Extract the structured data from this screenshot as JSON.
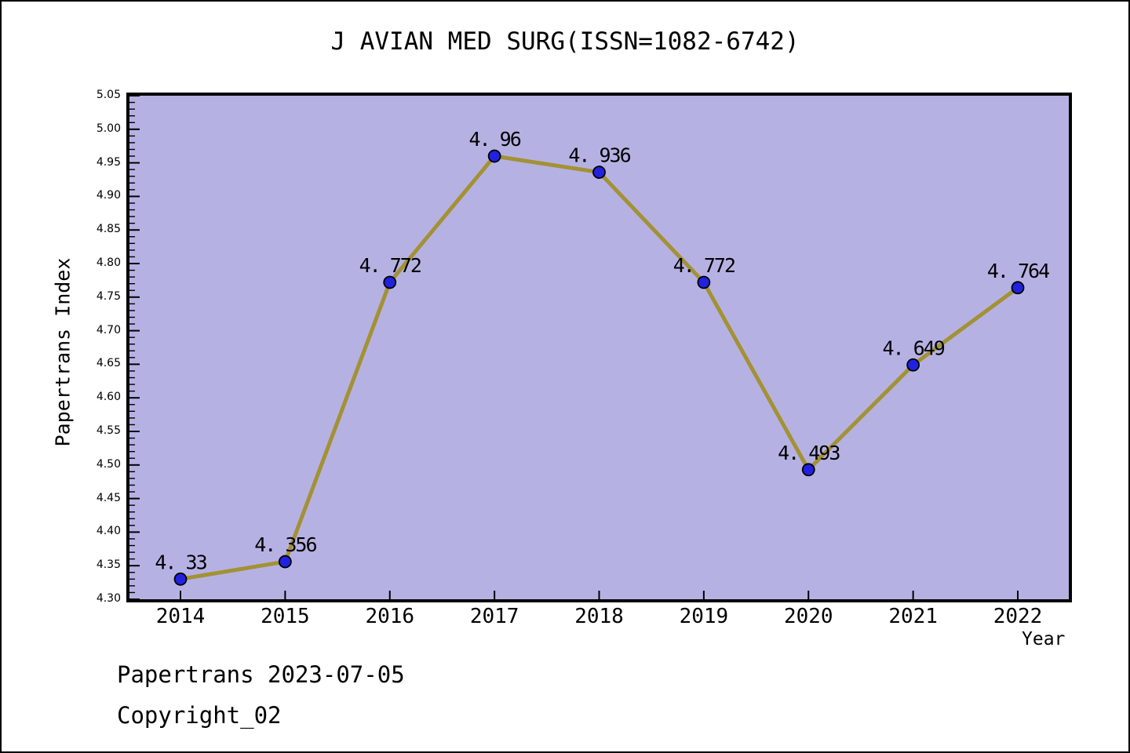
{
  "footer": {
    "line1": "Papertrans 2023-07-05",
    "line2": "Copyright_02"
  },
  "chart_data": {
    "type": "line",
    "title": "J AVIAN MED SURG(ISSN=1082-6742)",
    "xlabel": "Year",
    "ylabel": "Papertrans Index",
    "x": [
      2014,
      2015,
      2016,
      2017,
      2018,
      2019,
      2020,
      2021,
      2022
    ],
    "x_tick_labels": [
      "2014",
      "2015",
      "2016",
      "2017",
      "2018",
      "2019",
      "2020",
      "2021",
      "2022"
    ],
    "series": [
      {
        "name": "Papertrans Index",
        "values": [
          4.33,
          4.356,
          4.772,
          4.96,
          4.936,
          4.772,
          4.493,
          4.649,
          4.764
        ],
        "point_labels": [
          "4. 33",
          "4. 356",
          "4. 772",
          "4. 96",
          "4. 936",
          "4. 772",
          "4. 493",
          "4. 649",
          "4. 764"
        ]
      }
    ],
    "ylim": [
      4.3,
      5.05
    ],
    "ytick_step": 0.05,
    "y_minor_tick_step": 0.01,
    "y_tick_labels": [
      "4.30",
      "4.35",
      "4.40",
      "4.45",
      "4.50",
      "4.55",
      "4.60",
      "4.65",
      "4.70",
      "4.75",
      "4.80",
      "4.85",
      "4.90",
      "4.95",
      "5.00",
      "5.05"
    ],
    "grid": false,
    "legend": "none",
    "colors": {
      "figure_bg": "#ffffff",
      "plot_bg": "#b5b2e3",
      "line": "#a39134",
      "marker": "#2121e0",
      "marker_edge": "#000000",
      "axis": "#000000",
      "text": "#000000"
    }
  }
}
